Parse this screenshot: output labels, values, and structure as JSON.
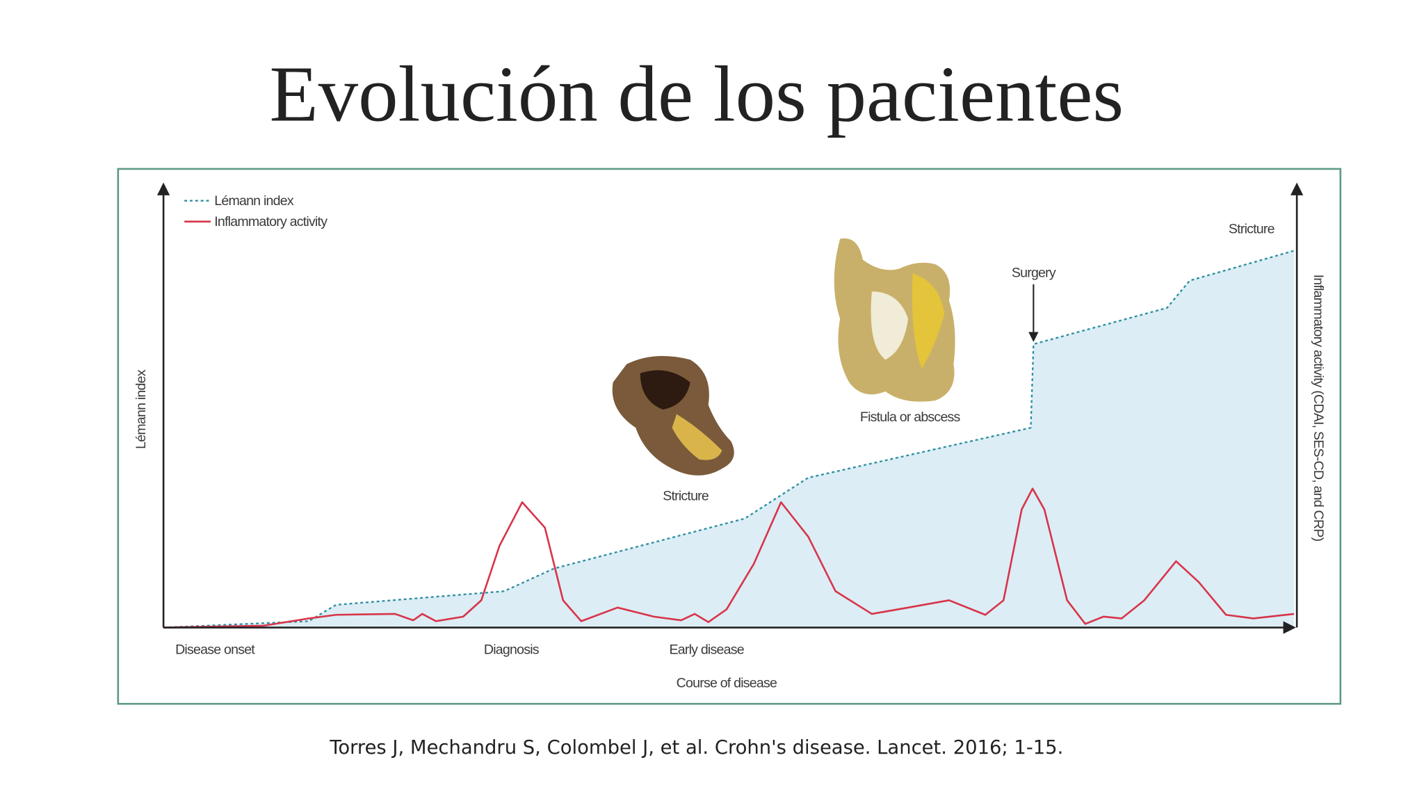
{
  "title": "Evolución de los pacientes",
  "legend": [
    "Lémann index",
    "Inflammatory activity"
  ],
  "y_axis_label": "Lémann index",
  "y2_axis_label": "Inflammatory activity (CDAI, SES-CD, and CRP)",
  "x_axis_label": "Course of disease",
  "stages": [
    "Disease onset",
    "Diagnosis",
    "Early disease"
  ],
  "annotations": [
    "Stricture",
    "Fistula or abscess",
    "Surgery",
    "Stricture"
  ],
  "citation": "Torres J, Mechandru S, Colombel J, et al. Crohn's disease. Lancet. 2016; 1-15."
}
